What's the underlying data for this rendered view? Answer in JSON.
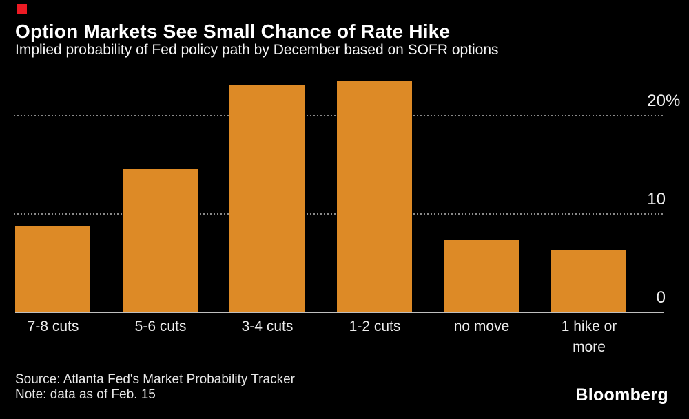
{
  "brand": {
    "logo": "Bloomberg",
    "red_square_color": "#ed1b24"
  },
  "header": {
    "title": "Option Markets See Small Chance of Rate Hike",
    "subtitle": "Implied probability of Fed policy path by December based on SOFR options"
  },
  "chart_data": {
    "type": "bar",
    "title": "Option Markets See Small Chance of Rate Hike",
    "subtitle": "Implied probability of Fed policy path by December based on SOFR options",
    "categories": [
      "7-8 cuts",
      "5-6 cuts",
      "3-4 cuts",
      "1-2 cuts",
      "no move",
      "1 hike or more"
    ],
    "values": [
      8.7,
      14.5,
      23.0,
      23.4,
      7.3,
      6.2
    ],
    "unit": "%",
    "xlabel": "",
    "ylabel": "",
    "ylim": [
      0,
      24.5
    ],
    "yticks": [
      {
        "value": 0,
        "label": "0"
      },
      {
        "value": 10,
        "label": "10"
      },
      {
        "value": 20,
        "label": "20%"
      }
    ],
    "value_axis_side": "right",
    "grid": "horizontal-dotted",
    "legend_position": "none",
    "bar_color": "#dd8a26",
    "gridline_color": "#8a8a8a",
    "axis_line_color": "#bfbfbf",
    "background_color": "#000000"
  },
  "footer": {
    "source": "Source: Atlanta Fed's Market Probability Tracker",
    "note": "Note: data as of Feb. 15"
  }
}
